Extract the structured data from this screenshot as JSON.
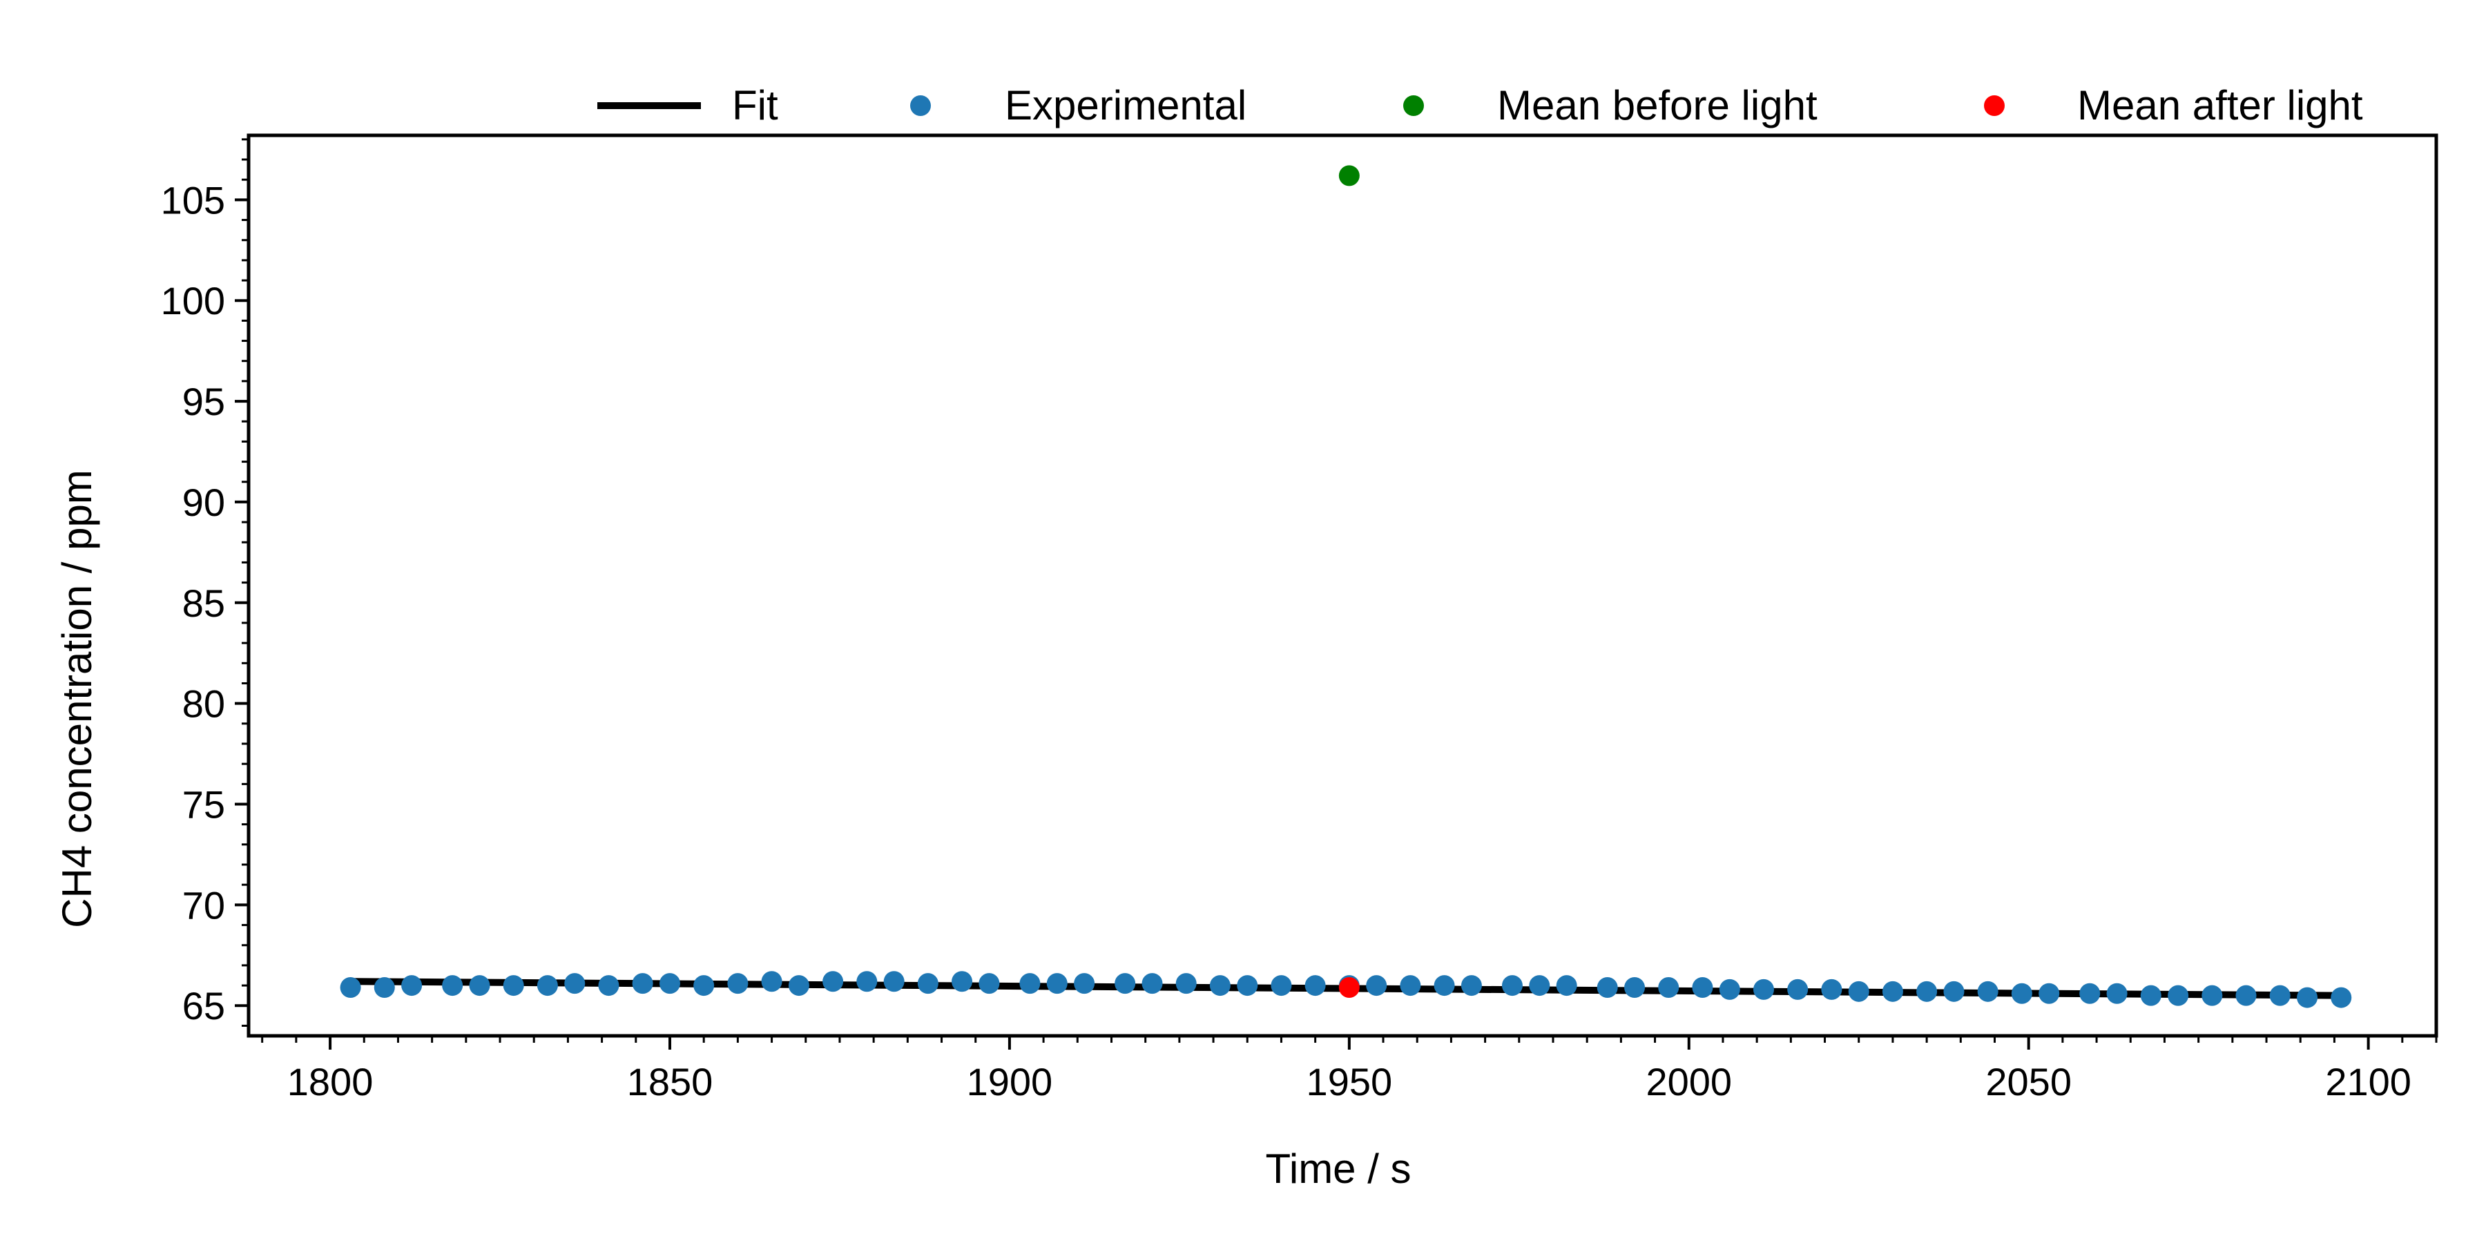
{
  "chart_data": {
    "type": "scatter",
    "xlabel": "Time / s",
    "ylabel": "CH4 concentration / ppm",
    "xlim": [
      1788,
      2110
    ],
    "ylim": [
      63.5,
      108.2
    ],
    "xticks": [
      1800,
      1850,
      1900,
      1950,
      2000,
      2050,
      2100
    ],
    "yticks": [
      65,
      70,
      75,
      80,
      85,
      90,
      95,
      100,
      105
    ],
    "x_minor_step": 5,
    "y_minor_step": 1,
    "grid": false,
    "legend_position": "top",
    "colors": {
      "fit": "#000000",
      "experimental": "#1f77b4",
      "mean_before": "#008000",
      "mean_after": "#ff0000"
    },
    "legend": [
      {
        "key": "fit",
        "label": "Fit",
        "marker": "line"
      },
      {
        "key": "experimental",
        "label": "Experimental",
        "marker": "dot"
      },
      {
        "key": "mean_before",
        "label": "Mean before light",
        "marker": "dot"
      },
      {
        "key": "mean_after",
        "label": "Mean after light",
        "marker": "dot"
      }
    ],
    "fit": {
      "x": [
        1803,
        2096
      ],
      "y": [
        66.2,
        65.5
      ]
    },
    "experimental": {
      "x": [
        1803,
        1808,
        1812,
        1818,
        1822,
        1827,
        1832,
        1836,
        1841,
        1846,
        1850,
        1855,
        1860,
        1865,
        1869,
        1874,
        1879,
        1883,
        1888,
        1893,
        1897,
        1903,
        1907,
        1911,
        1917,
        1921,
        1926,
        1931,
        1935,
        1940,
        1945,
        1950,
        1954,
        1959,
        1964,
        1968,
        1974,
        1978,
        1982,
        1988,
        1992,
        1997,
        2002,
        2006,
        2011,
        2016,
        2021,
        2025,
        2030,
        2035,
        2039,
        2044,
        2049,
        2053,
        2059,
        2063,
        2068,
        2072,
        2077,
        2082,
        2087,
        2091,
        2096
      ],
      "y": [
        65.9,
        65.9,
        66.0,
        66.0,
        66.0,
        66.0,
        66.0,
        66.1,
        66.0,
        66.1,
        66.1,
        66.0,
        66.1,
        66.2,
        66.0,
        66.2,
        66.2,
        66.2,
        66.1,
        66.2,
        66.1,
        66.1,
        66.1,
        66.1,
        66.1,
        66.1,
        66.1,
        66.0,
        66.0,
        66.0,
        66.0,
        66.0,
        66.0,
        66.0,
        66.0,
        66.0,
        66.0,
        66.0,
        66.0,
        65.9,
        65.9,
        65.9,
        65.9,
        65.8,
        65.8,
        65.8,
        65.8,
        65.7,
        65.7,
        65.7,
        65.7,
        65.7,
        65.6,
        65.6,
        65.6,
        65.6,
        65.5,
        65.5,
        65.5,
        65.5,
        65.5,
        65.4,
        65.4
      ]
    },
    "mean_before": {
      "x": [
        1950
      ],
      "y": [
        106.2
      ]
    },
    "mean_after": {
      "x": [
        1950
      ],
      "y": [
        65.9
      ]
    }
  }
}
